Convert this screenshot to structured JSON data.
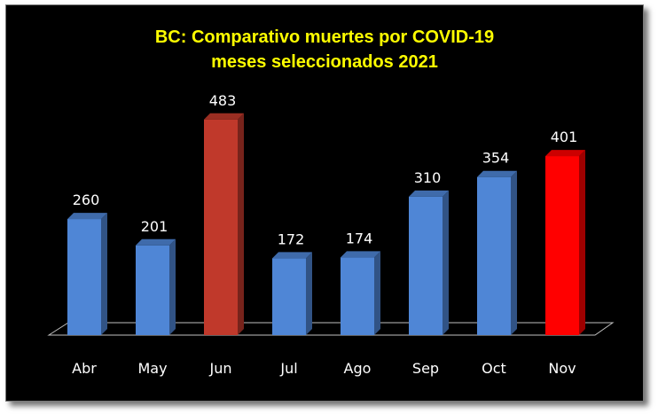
{
  "chart_data": {
    "type": "bar",
    "title_lines": [
      "BC: Comparativo  muertes por COVID-19",
      "meses seleccionados 2021"
    ],
    "categories": [
      "Abr",
      "May",
      "Jun",
      "Jul",
      "Ago",
      "Sep",
      "Oct",
      "Nov"
    ],
    "values": [
      260,
      201,
      483,
      172,
      174,
      310,
      354,
      401
    ],
    "bar_colors": [
      "#4f86d6",
      "#4f86d6",
      "#c0392b",
      "#4f86d6",
      "#4f86d6",
      "#4f86d6",
      "#4f86d6",
      "#ff0000"
    ],
    "background": "#000000",
    "title_color": "#ffff00",
    "xlabel": "",
    "ylabel": "",
    "ylim": [
      0,
      560
    ],
    "grid": false,
    "legend": "none",
    "data_labels": true,
    "style": "3d-columns"
  }
}
